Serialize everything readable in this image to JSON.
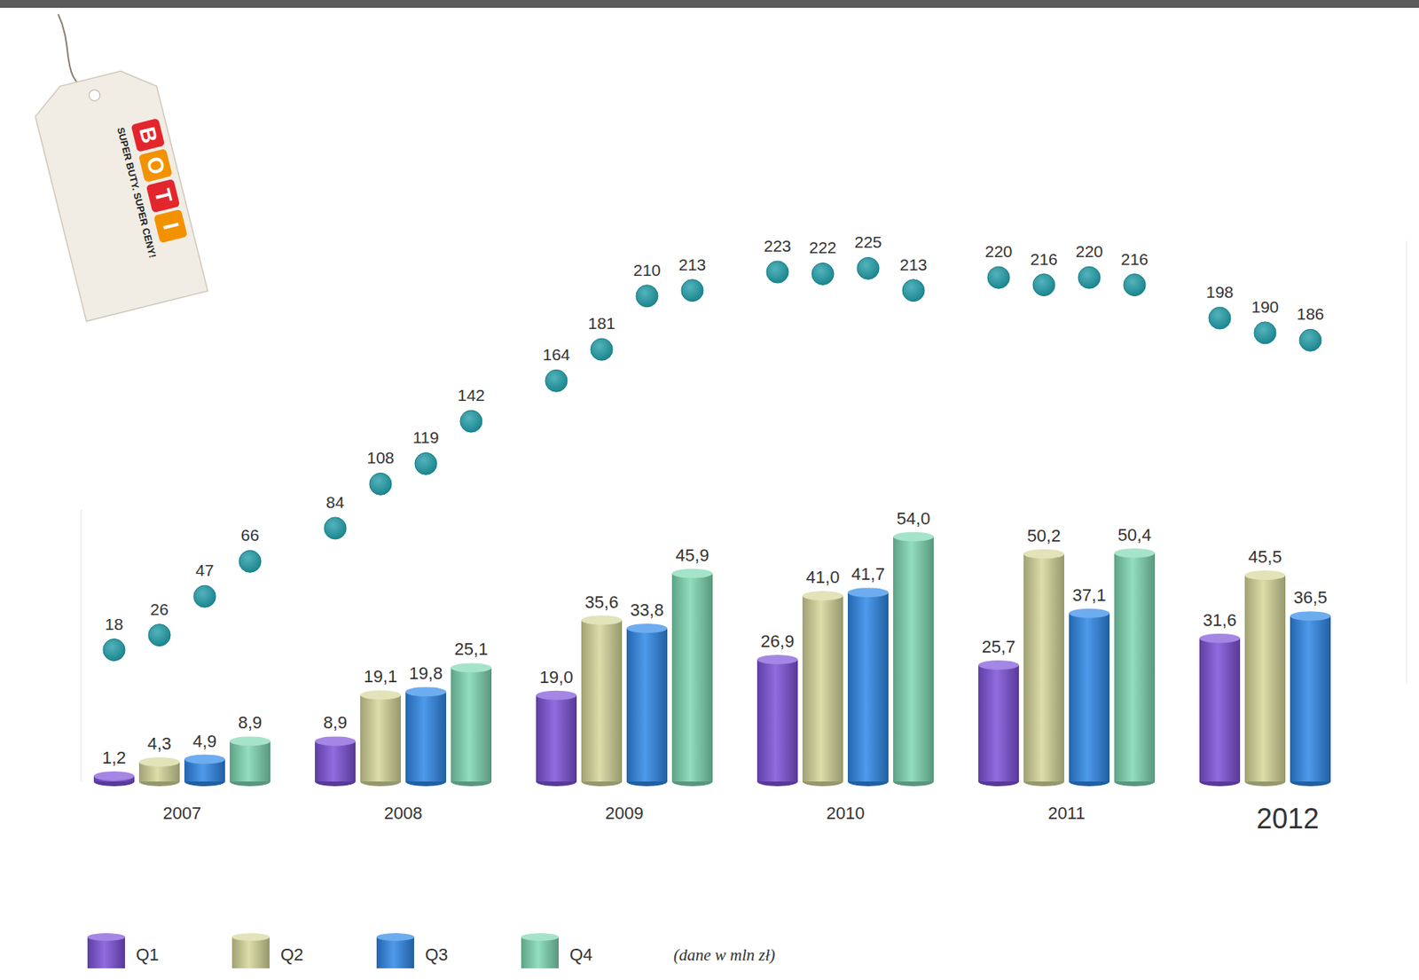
{
  "logo": {
    "brand": "BOTI",
    "slogan": "SUPER BUTY. SUPER CENY!"
  },
  "chart_data": [
    {
      "type": "bar",
      "subtitle": "(dane w mln zł)",
      "categories": [
        "2007",
        "2008",
        "2009",
        "2010",
        "2011",
        "2012"
      ],
      "series": [
        {
          "name": "Q1",
          "color": "#7d52d9",
          "values": [
            1.2,
            8.9,
            19.0,
            26.9,
            25.7,
            31.6
          ],
          "value_labels": [
            "1,2",
            "8,9",
            "19,0",
            "26,9",
            "25,7",
            "31,6"
          ]
        },
        {
          "name": "Q2",
          "color": "#d6d79a",
          "values": [
            4.3,
            19.1,
            35.6,
            41.0,
            50.2,
            45.5
          ],
          "value_labels": [
            "4,3",
            "19,1",
            "35,6",
            "41,0",
            "50,2",
            "45,5"
          ]
        },
        {
          "name": "Q3",
          "color": "#2f88e8",
          "values": [
            4.9,
            19.8,
            33.8,
            41.7,
            37.1,
            36.5
          ],
          "value_labels": [
            "4,9",
            "19,8",
            "33,8",
            "41,7",
            "37,1",
            "36,5"
          ]
        },
        {
          "name": "Q4",
          "color": "#7fd8b2",
          "values": [
            8.9,
            25.1,
            45.9,
            54.0,
            50.4,
            null
          ],
          "value_labels": [
            "8,9",
            "25,1",
            "45,9",
            "54,0",
            "50,4",
            null
          ]
        }
      ],
      "ylim": [
        0,
        60
      ],
      "data_labels": true,
      "tick_labels": "x",
      "legend": "bottom-left",
      "grid": false
    },
    {
      "type": "scatter",
      "categories": [
        null,
        null,
        null,
        null,
        null,
        null,
        null,
        null,
        null,
        null,
        null,
        null,
        null,
        null,
        null,
        null,
        null,
        null,
        null,
        null,
        null,
        null,
        null,
        null
      ],
      "values": [
        18,
        26,
        47,
        66,
        84,
        108,
        119,
        142,
        164,
        181,
        210,
        213,
        223,
        222,
        225,
        213,
        220,
        216,
        220,
        216,
        198,
        190,
        186,
        null
      ],
      "color": "#1b9aa5",
      "ylim": [
        0,
        240
      ],
      "data_labels": true,
      "tick_labels": false,
      "marker": "circle"
    }
  ]
}
